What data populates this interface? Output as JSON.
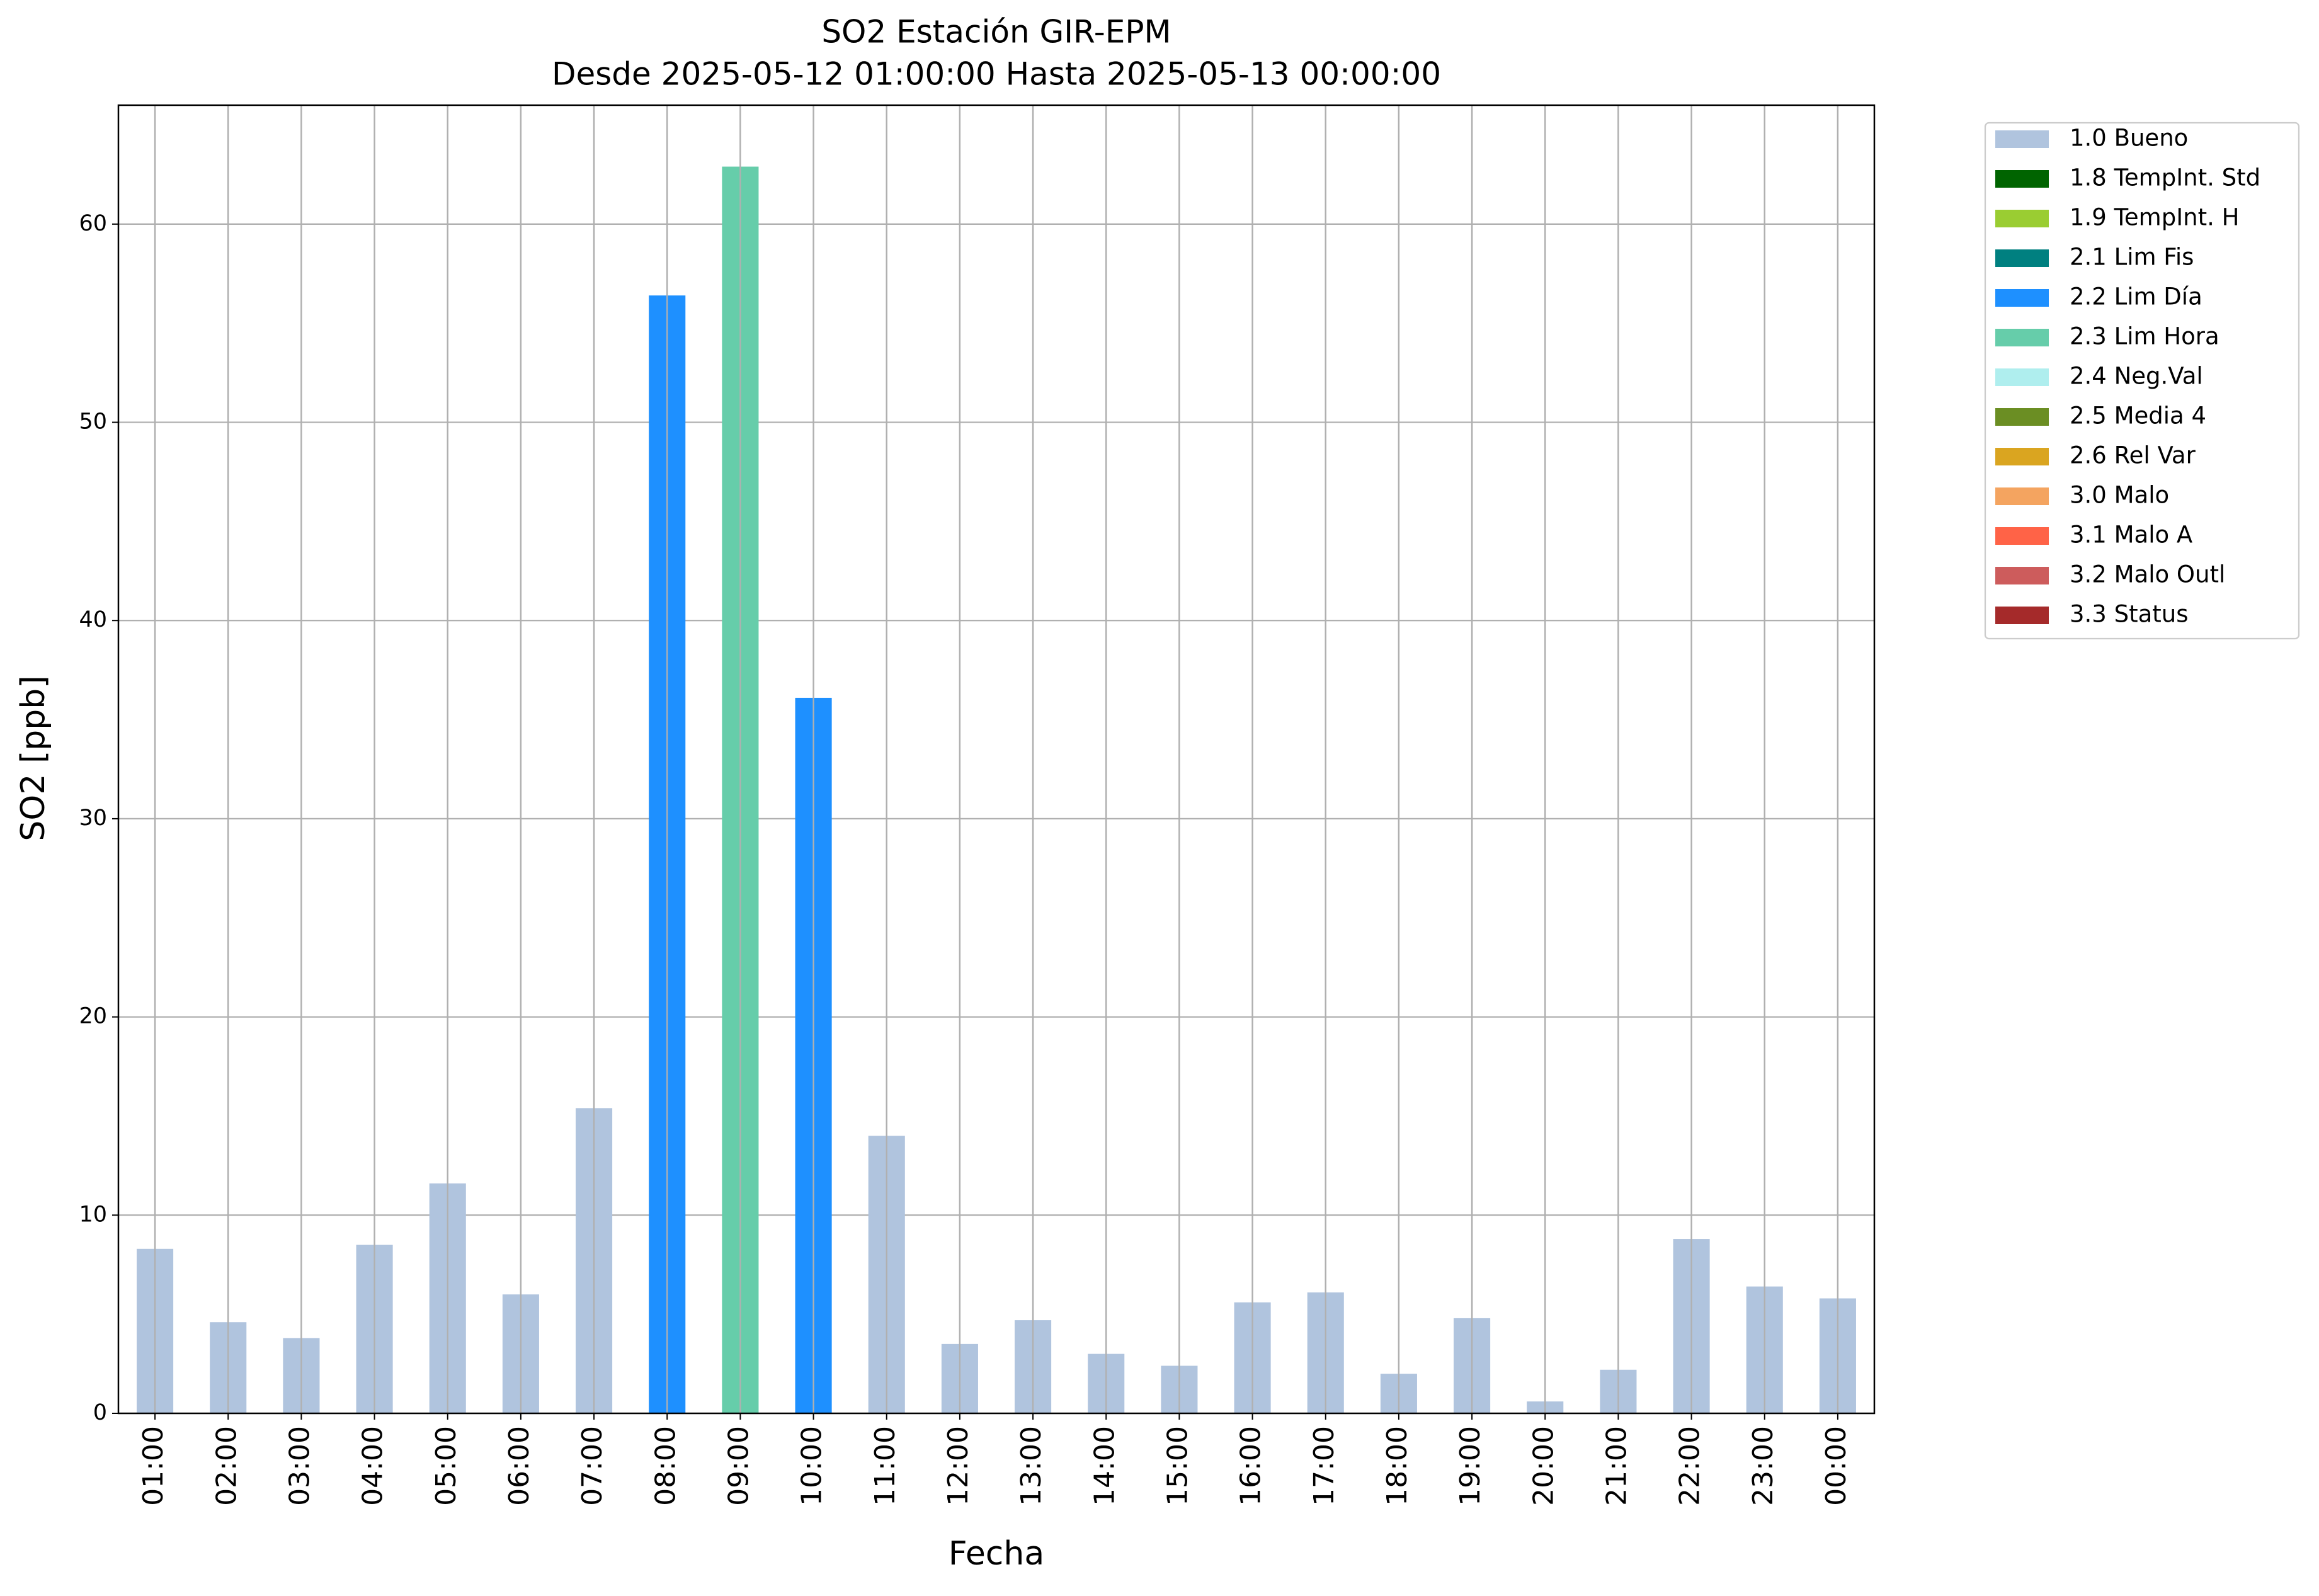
{
  "chart_data": {
    "type": "bar",
    "title": "SO2 Estación GIR-EPM",
    "subtitle": "Desde 2025-05-12 01:00:00 Hasta 2025-05-13 00:00:00",
    "x_label": "Fecha",
    "y_label": "SO2 [ppb]",
    "categories": [
      "01:00",
      "02:00",
      "03:00",
      "04:00",
      "05:00",
      "06:00",
      "07:00",
      "08:00",
      "09:00",
      "10:00",
      "11:00",
      "12:00",
      "13:00",
      "14:00",
      "15:00",
      "16:00",
      "17:00",
      "18:00",
      "19:00",
      "20:00",
      "21:00",
      "22:00",
      "23:00",
      "00:00"
    ],
    "series": [
      {
        "name": "1.0 Bueno",
        "color": "#b0c4de",
        "values": [
          8.3,
          4.6,
          3.8,
          8.5,
          11.6,
          6.0,
          15.4,
          null,
          null,
          null,
          14.0,
          3.5,
          4.7,
          3.0,
          2.4,
          5.6,
          6.1,
          2.0,
          4.8,
          0.6,
          2.2,
          8.8,
          6.4,
          5.8
        ]
      },
      {
        "name": "1.8 TempInt. Std",
        "color": "#006400",
        "values": [
          null,
          null,
          null,
          null,
          null,
          null,
          null,
          null,
          null,
          null,
          null,
          null,
          null,
          null,
          null,
          null,
          null,
          null,
          null,
          null,
          null,
          null,
          null,
          null
        ]
      },
      {
        "name": "1.9 TempInt. H",
        "color": "#9acd32",
        "values": [
          null,
          null,
          null,
          null,
          null,
          null,
          null,
          null,
          null,
          null,
          null,
          null,
          null,
          null,
          null,
          null,
          null,
          null,
          null,
          null,
          null,
          null,
          null,
          null
        ]
      },
      {
        "name": "2.1 Lim Fis",
        "color": "#008080",
        "values": [
          null,
          null,
          null,
          null,
          null,
          null,
          null,
          null,
          null,
          null,
          null,
          null,
          null,
          null,
          null,
          null,
          null,
          null,
          null,
          null,
          null,
          null,
          null,
          null
        ]
      },
      {
        "name": "2.2 Lim Día",
        "color": "#1e90ff",
        "values": [
          null,
          null,
          null,
          null,
          null,
          null,
          null,
          56.4,
          null,
          36.1,
          null,
          null,
          null,
          null,
          null,
          null,
          null,
          null,
          null,
          null,
          null,
          null,
          null,
          null
        ]
      },
      {
        "name": "2.3 Lim Hora",
        "color": "#66cdaa",
        "values": [
          null,
          null,
          null,
          null,
          null,
          null,
          null,
          null,
          62.9,
          null,
          null,
          null,
          null,
          null,
          null,
          null,
          null,
          null,
          null,
          null,
          null,
          null,
          null,
          null
        ]
      },
      {
        "name": "2.4 Neg.Val",
        "color": "#afeeee",
        "values": [
          null,
          null,
          null,
          null,
          null,
          null,
          null,
          null,
          null,
          null,
          null,
          null,
          null,
          null,
          null,
          null,
          null,
          null,
          null,
          null,
          null,
          null,
          null,
          null
        ]
      },
      {
        "name": "2.5 Media 4",
        "color": "#6b8e23",
        "values": [
          null,
          null,
          null,
          null,
          null,
          null,
          null,
          null,
          null,
          null,
          null,
          null,
          null,
          null,
          null,
          null,
          null,
          null,
          null,
          null,
          null,
          null,
          null,
          null
        ]
      },
      {
        "name": "2.6 Rel Var",
        "color": "#daa520",
        "values": [
          null,
          null,
          null,
          null,
          null,
          null,
          null,
          null,
          null,
          null,
          null,
          null,
          null,
          null,
          null,
          null,
          null,
          null,
          null,
          null,
          null,
          null,
          null,
          null
        ]
      },
      {
        "name": "3.0 Malo",
        "color": "#f4a460",
        "values": [
          null,
          null,
          null,
          null,
          null,
          null,
          null,
          null,
          null,
          null,
          null,
          null,
          null,
          null,
          null,
          null,
          null,
          null,
          null,
          null,
          null,
          null,
          null,
          null
        ]
      },
      {
        "name": "3.1 Malo A",
        "color": "#ff6347",
        "values": [
          null,
          null,
          null,
          null,
          null,
          null,
          null,
          null,
          null,
          null,
          null,
          null,
          null,
          null,
          null,
          null,
          null,
          null,
          null,
          null,
          null,
          null,
          null,
          null
        ]
      },
      {
        "name": "3.2 Malo Outl",
        "color": "#cd5c5c",
        "values": [
          null,
          null,
          null,
          null,
          null,
          null,
          null,
          null,
          null,
          null,
          null,
          null,
          null,
          null,
          null,
          null,
          null,
          null,
          null,
          null,
          null,
          null,
          null,
          null
        ]
      },
      {
        "name": "3.3 Status",
        "color": "#a52a2a",
        "values": [
          null,
          null,
          null,
          null,
          null,
          null,
          null,
          null,
          null,
          null,
          null,
          null,
          null,
          null,
          null,
          null,
          null,
          null,
          null,
          null,
          null,
          null,
          null,
          null
        ]
      }
    ],
    "ylim": [
      0,
      66
    ],
    "yticks": [
      0,
      10,
      20,
      30,
      40,
      50,
      60
    ],
    "grid": true
  }
}
